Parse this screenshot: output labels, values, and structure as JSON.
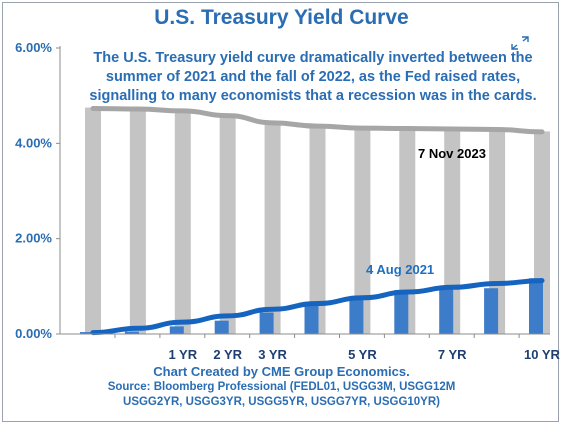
{
  "title": "U.S. Treasury Yield Curve",
  "annotation": "The U.S. Treasury yield curve dramatically inverted between the summer of 2021 and the fall of 2022, as the Fed raised rates, signalling to many economists that a recession was in the cards.",
  "footer": {
    "credit": "Chart Created by CME Group Economics.",
    "source_line1": "Source:  Bloomberg Professional (FEDL01, USGG3M, USGG12M",
    "source_line2": "USGG2YR, USGG3YR, USGG5YR, USGG7YR, USGG10YR)"
  },
  "colors": {
    "title": "#2a6db3",
    "bar_nov_2023": "#c4c4c4",
    "line_nov_2023": "#a6a6a6",
    "bar_aug_2021": "#3d7cc9",
    "line_aug_2021": "#1565c0",
    "axis": "#8c8c8c"
  },
  "chart_data": {
    "type": "bar",
    "title": "U.S. Treasury Yield Curve",
    "y_tick_labels": [
      "0.00%",
      "2.00%",
      "4.00%",
      "6.00%"
    ],
    "ylim": [
      0,
      6
    ],
    "y_unit": "%",
    "grid": false,
    "categories": [
      "",
      "",
      "1 YR",
      "2 YR",
      "3 YR",
      "",
      "5 YR",
      "",
      "7 YR",
      "",
      "10 YR"
    ],
    "x_tick_labels": [
      "1 YR",
      "2 YR",
      "3 YR",
      "5 YR",
      "7 YR",
      "10 YR"
    ],
    "series": [
      {
        "name": "7 Nov  2023",
        "type": "bar+line",
        "values": [
          4.75,
          4.74,
          4.71,
          4.62,
          4.47,
          4.38,
          4.35,
          4.35,
          4.32,
          4.3,
          4.25
        ],
        "line": [
          4.73,
          4.72,
          4.68,
          4.58,
          4.43,
          4.36,
          4.32,
          4.31,
          4.3,
          4.29,
          4.24
        ]
      },
      {
        "name": "4 Aug 2021",
        "type": "bar+line",
        "values": [
          0.04,
          0.05,
          0.16,
          0.28,
          0.45,
          0.6,
          0.75,
          0.92,
          0.98,
          0.96,
          1.17
        ],
        "line": [
          0.03,
          0.12,
          0.25,
          0.38,
          0.52,
          0.64,
          0.76,
          0.88,
          0.98,
          1.06,
          1.12
        ]
      }
    ]
  }
}
